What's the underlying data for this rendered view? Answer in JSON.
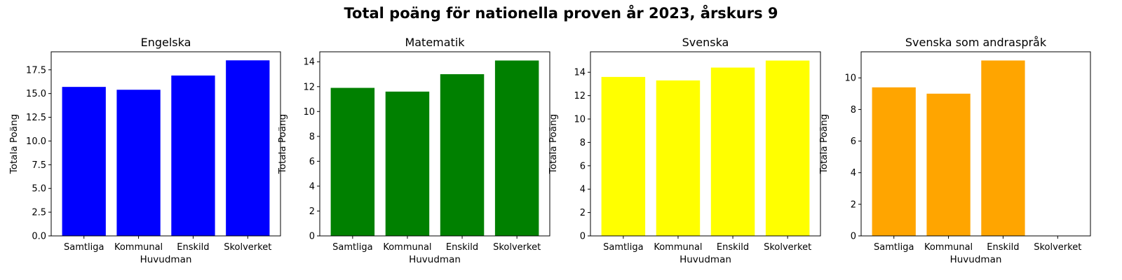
{
  "figure": {
    "suptitle": "Total poäng för nationella proven år 2023, årskurs 9"
  },
  "chart_data": [
    {
      "type": "bar",
      "title": "Engelska",
      "xlabel": "Huvudman",
      "ylabel": "Totala Poäng",
      "categories": [
        "Samtliga",
        "Kommunal",
        "Enskild",
        "Skolverket"
      ],
      "values": [
        15.7,
        15.4,
        16.9,
        18.5
      ],
      "color": "#0000ff",
      "ylim": [
        0,
        19.4
      ],
      "yticks": [
        0.0,
        2.5,
        5.0,
        7.5,
        10.0,
        12.5,
        15.0,
        17.5
      ],
      "ytick_decimals": 1
    },
    {
      "type": "bar",
      "title": "Matematik",
      "xlabel": "Huvudman",
      "ylabel": "Totala Poäng",
      "categories": [
        "Samtliga",
        "Kommunal",
        "Enskild",
        "Skolverket"
      ],
      "values": [
        11.9,
        11.6,
        13.0,
        14.1
      ],
      "color": "#008000",
      "ylim": [
        0,
        14.8
      ],
      "yticks": [
        0,
        2,
        4,
        6,
        8,
        10,
        12,
        14
      ],
      "ytick_decimals": 0
    },
    {
      "type": "bar",
      "title": "Svenska",
      "xlabel": "Huvudman",
      "ylabel": "Totala Poäng",
      "categories": [
        "Samtliga",
        "Kommunal",
        "Enskild",
        "Skolverket"
      ],
      "values": [
        13.6,
        13.3,
        14.4,
        15.0
      ],
      "color": "#ffff00",
      "ylim": [
        0,
        15.75
      ],
      "yticks": [
        0,
        2,
        4,
        6,
        8,
        10,
        12,
        14
      ],
      "ytick_decimals": 0
    },
    {
      "type": "bar",
      "title": "Svenska som andraspråk",
      "xlabel": "Huvudman",
      "ylabel": "Totala Poäng",
      "categories": [
        "Samtliga",
        "Kommunal",
        "Enskild",
        "Skolverket"
      ],
      "values": [
        9.4,
        9.0,
        11.1,
        0
      ],
      "color": "#ffa500",
      "ylim": [
        0,
        11.65
      ],
      "yticks": [
        0,
        2,
        4,
        6,
        8,
        10
      ],
      "ytick_decimals": 0
    }
  ]
}
